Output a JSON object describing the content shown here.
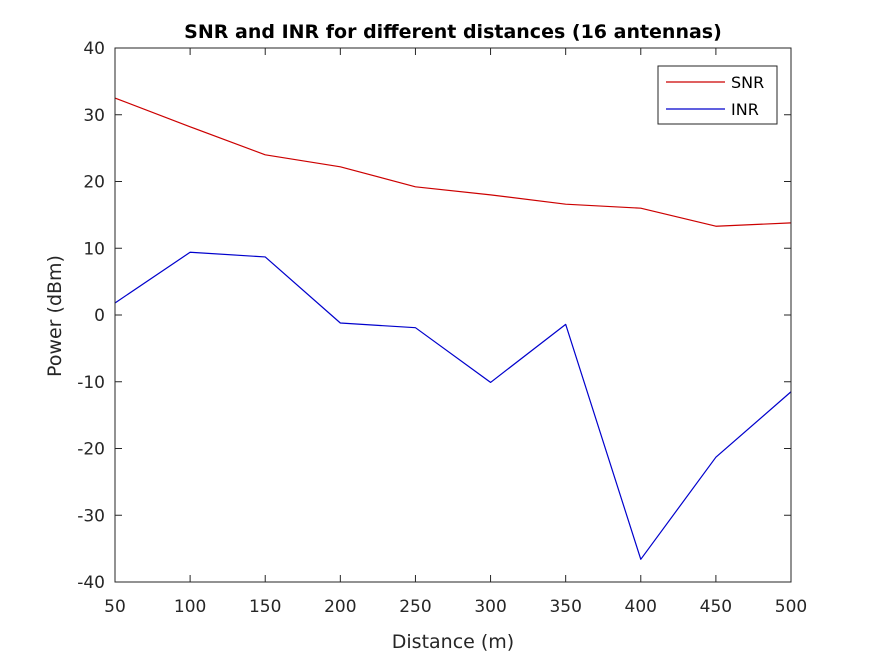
{
  "chart_data": {
    "type": "line",
    "title": "SNR and INR for different distances (16 antennas)",
    "xlabel": "Distance (m)",
    "ylabel": "Power (dBm)",
    "xlim": [
      50,
      500
    ],
    "ylim": [
      -40,
      40
    ],
    "xticks": [
      50,
      100,
      150,
      200,
      250,
      300,
      350,
      400,
      450,
      500
    ],
    "yticks": [
      -40,
      -30,
      -20,
      -10,
      0,
      10,
      20,
      30,
      40
    ],
    "x_tick_labels": [
      "50",
      "100",
      "150",
      "200",
      "250",
      "300",
      "350",
      "400",
      "450",
      "500"
    ],
    "y_tick_labels": [
      "-40",
      "-30",
      "-20",
      "-10",
      "0",
      "10",
      "20",
      "30",
      "40"
    ],
    "grid": false,
    "legend_position": "top-right",
    "x": [
      50,
      100,
      150,
      200,
      250,
      300,
      350,
      400,
      450,
      500
    ],
    "series": [
      {
        "name": "SNR",
        "color": "#cc0000",
        "values": [
          32.5,
          28.2,
          24.0,
          22.2,
          19.2,
          18.0,
          16.6,
          16.0,
          13.3,
          13.8
        ]
      },
      {
        "name": "INR",
        "color": "#0000cc",
        "values": [
          1.8,
          9.4,
          8.7,
          -1.2,
          -1.9,
          -10.1,
          -1.4,
          -36.6,
          -21.3,
          -11.5
        ]
      }
    ]
  }
}
